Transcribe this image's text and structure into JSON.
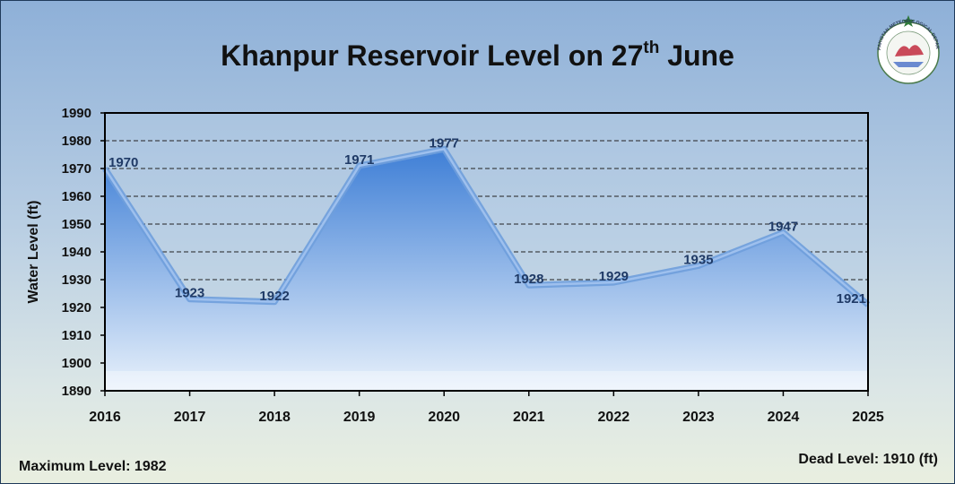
{
  "chart_data": {
    "type": "area",
    "title_main": "Khanpur Reservoir Level on 27",
    "title_sup": "th",
    "title_end": " June",
    "ylabel": "Water Level (ft)",
    "xlabel": "",
    "categories": [
      "2016",
      "2017",
      "2018",
      "2019",
      "2020",
      "2021",
      "2022",
      "2023",
      "2024",
      "2025"
    ],
    "values": [
      1970,
      1923,
      1922,
      1971,
      1977,
      1928,
      1929,
      1935,
      1947,
      1921
    ],
    "data_labels": [
      "1970",
      "1923",
      "1922",
      "1971",
      "1977",
      "1928",
      "1929",
      "1935",
      "1947",
      "1921"
    ],
    "ylim": [
      1890,
      1990
    ],
    "yticks": [
      1890,
      1900,
      1910,
      1920,
      1930,
      1940,
      1950,
      1960,
      1970,
      1980,
      1990
    ],
    "grid": true,
    "colors": {
      "area_top": "#3f7fd6",
      "area_bottom": "#e8f1fb",
      "edge": "#6f9edb",
      "label": "#1f3a66"
    }
  },
  "footer": {
    "maximum_level": "Maximum Level: 1982",
    "dead_level": "Dead Level: 1910 (ft)"
  },
  "logo": {
    "name": "pakistan-meteorological-department-logo",
    "text": "PAKISTAN METEOROLOGICAL DEPARTMENT"
  }
}
